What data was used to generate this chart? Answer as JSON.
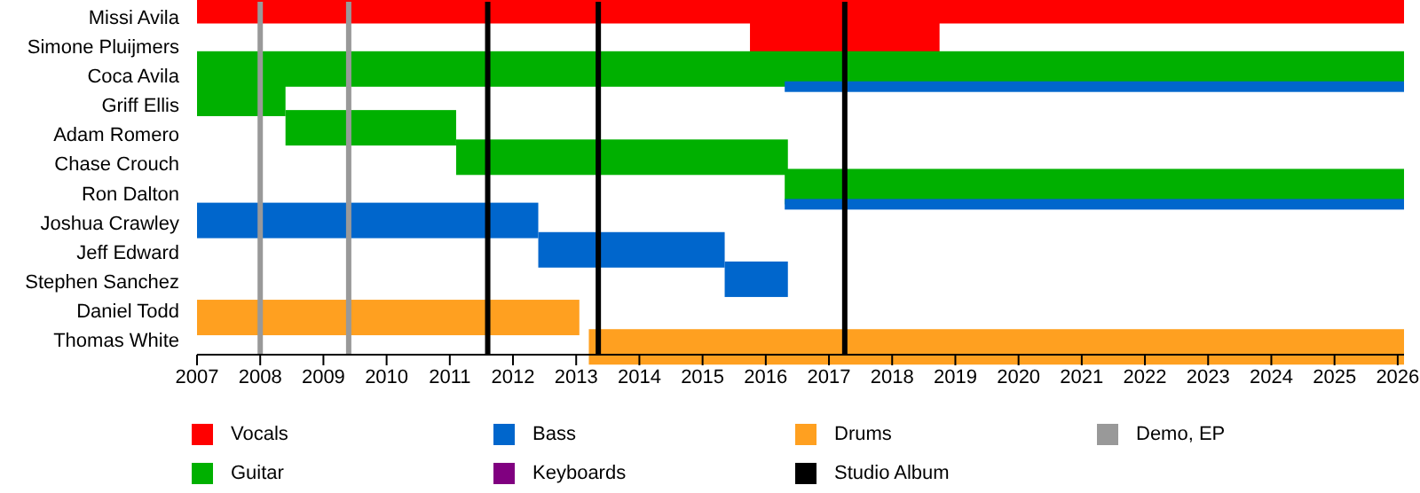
{
  "chart_data": {
    "type": "bar",
    "orientation": "horizontal",
    "categories": [
      "Missi Avila",
      "Simone Pluijmers",
      "Coca Avila",
      "Griff Ellis",
      "Adam Romero",
      "Chase Crouch",
      "Ron Dalton",
      "Joshua Crawley",
      "Jeff Edward",
      "Stephen Sanchez",
      "Daniel Todd",
      "Thomas White"
    ],
    "series": [
      {
        "name": "Vocals",
        "color": "#ff0000",
        "values": [
          19.1,
          3.0,
          null,
          null,
          null,
          null,
          null,
          null,
          null,
          null,
          null,
          null
        ],
        "base": [
          2007,
          2015.75,
          null,
          null,
          null,
          null,
          null,
          null,
          null,
          null,
          null,
          null
        ]
      },
      {
        "name": "Guitar",
        "color": "#00b000",
        "values": [
          null,
          null,
          19.1,
          1.4,
          2.7,
          5.25,
          9.8,
          null,
          null,
          null,
          null,
          null
        ],
        "base": [
          null,
          null,
          2007,
          2007,
          2008.4,
          2011.1,
          2016.3,
          null,
          null,
          null,
          null,
          null
        ]
      },
      {
        "name": "Bass",
        "color": "#0066cc",
        "values": [
          null,
          null,
          null,
          null,
          null,
          null,
          null,
          5.4,
          2.95,
          1.0,
          null,
          null
        ],
        "base": [
          null,
          null,
          null,
          null,
          null,
          null,
          null,
          2007,
          2012.4,
          2015.35,
          null,
          null
        ]
      },
      {
        "name": "Keyboards",
        "color": "#800080",
        "values": [
          null,
          null,
          null,
          null,
          null,
          null,
          null,
          null,
          null,
          null,
          null,
          null
        ],
        "base": [
          null,
          null,
          null,
          null,
          null,
          null,
          null,
          null,
          null,
          null,
          null,
          null
        ]
      },
      {
        "name": "Drums",
        "color": "#ffa020",
        "values": [
          null,
          null,
          null,
          null,
          null,
          null,
          null,
          null,
          null,
          null,
          6.05,
          12.9
        ],
        "base": [
          null,
          null,
          null,
          null,
          null,
          null,
          null,
          null,
          null,
          null,
          2007,
          2013.2
        ]
      },
      {
        "color": "#0066cc",
        "values": [
          null,
          null,
          9.8,
          null,
          null,
          null,
          9.8,
          null,
          null,
          null,
          null,
          null
        ],
        "base": [
          null,
          null,
          2016.3,
          null,
          null,
          null,
          2016.3,
          null,
          null,
          null,
          null,
          null
        ]
      }
    ],
    "xlim": [
      2007,
      2026.1
    ],
    "xticks": [
      2007,
      2008,
      2009,
      2010,
      2011,
      2012,
      2013,
      2014,
      2015,
      2016,
      2017,
      2018,
      2019,
      2020,
      2021,
      2022,
      2023,
      2024,
      2025,
      2026
    ],
    "ref_lines": [
      {
        "axis": "x",
        "value": 2011.6,
        "label": "Studio Album",
        "color": "#000000"
      },
      {
        "axis": "x",
        "value": 2013.35,
        "color": "#000000"
      },
      {
        "axis": "x",
        "value": 2017.25,
        "color": "#000000"
      },
      {
        "axis": "x",
        "value": 2008.0,
        "label": "Demo, EP",
        "color": "#999999"
      },
      {
        "axis": "x",
        "value": 2009.4,
        "color": "#999999"
      }
    ],
    "legend": "bottom"
  }
}
